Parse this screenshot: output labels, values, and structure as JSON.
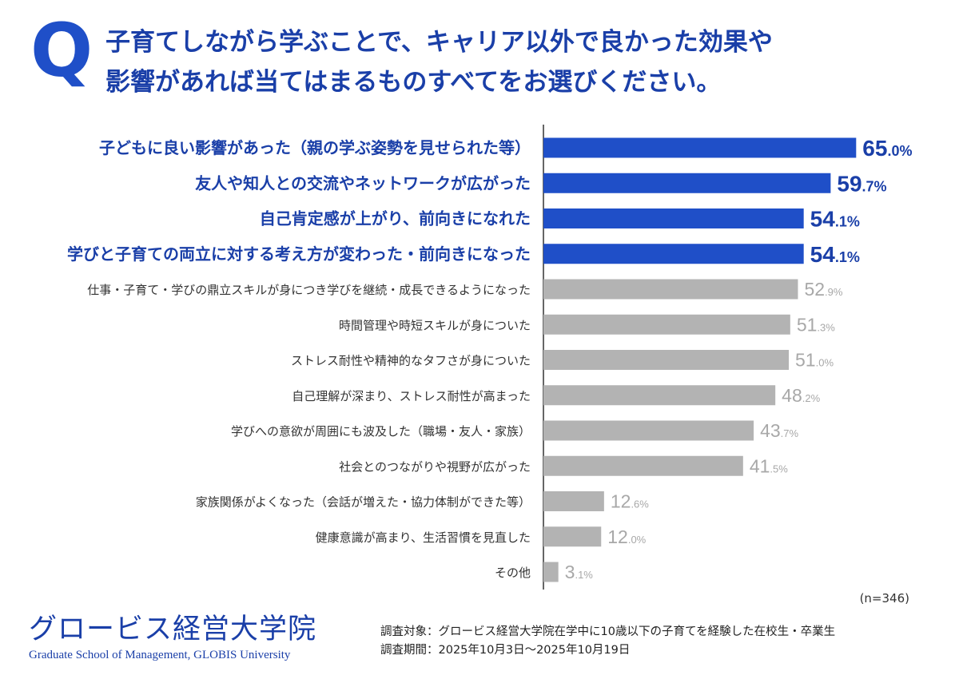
{
  "header": {
    "q_mark": "Q",
    "question_line1": "子育てしながら学ぶことで、キャリア以外で良かった効果や",
    "question_line2": "影響があれば当てはまるものすべてをお選びください。"
  },
  "chart_data": {
    "type": "bar",
    "orientation": "horizontal",
    "categories": [
      "子どもに良い影響があった（親の学ぶ姿勢を見せられた等）",
      "友人や知人との交流やネットワークが広がった",
      "自己肯定感が上がり、前向きになれた",
      "学びと子育ての両立に対する考え方が変わった・前向きになった",
      "仕事・子育て・学びの鼎立スキルが身につき学びを継続・成長できるようになった",
      "時間管理や時短スキルが身についた",
      "ストレス耐性や精神的なタフさが身についた",
      "自己理解が深まり、ストレス耐性が高まった",
      "学びへの意欲が周囲にも波及した（職場・友人・家族）",
      "社会とのつながりや視野が広がった",
      "家族関係がよくなった（会話が増えた・協力体制ができた等）",
      "健康意識が高まり、生活習慣を見直した",
      "その他"
    ],
    "values": [
      65.0,
      59.7,
      54.1,
      54.1,
      52.9,
      51.3,
      51.0,
      48.2,
      43.7,
      41.5,
      12.6,
      12.0,
      3.1
    ],
    "value_labels": [
      {
        "int": "65",
        "dec": ".0%"
      },
      {
        "int": "59",
        "dec": ".7%"
      },
      {
        "int": "54",
        "dec": ".1%"
      },
      {
        "int": "54",
        "dec": ".1%"
      },
      {
        "int": "52",
        "dec": ".9%"
      },
      {
        "int": "51",
        "dec": ".3%"
      },
      {
        "int": "51",
        "dec": ".0%"
      },
      {
        "int": "48",
        "dec": ".2%"
      },
      {
        "int": "43",
        "dec": ".7%"
      },
      {
        "int": "41",
        "dec": ".5%"
      },
      {
        "int": "12",
        "dec": ".6%"
      },
      {
        "int": "12",
        "dec": ".0%"
      },
      {
        "int": "3",
        "dec": ".1%"
      }
    ],
    "highlighted_count": 4,
    "xlim": [
      0,
      100
    ],
    "grid": false,
    "colors": {
      "highlight": "#1f4fc8",
      "highlight_label": "#1a3fa8",
      "normal": "#b3b3b3",
      "normal_label": "#a8a8a8",
      "axis": "#333333"
    }
  },
  "sample": "(n=346)",
  "logo": {
    "main": "グロービス経営大学院",
    "sub": "Graduate School of Management, GLOBIS University"
  },
  "survey": {
    "target": "調査対象：グロービス経営大学院在学中に10歳以下の子育てを経験した在校生・卒業生",
    "period": "調査期間：2025年10月3日〜2025年10月19日"
  }
}
